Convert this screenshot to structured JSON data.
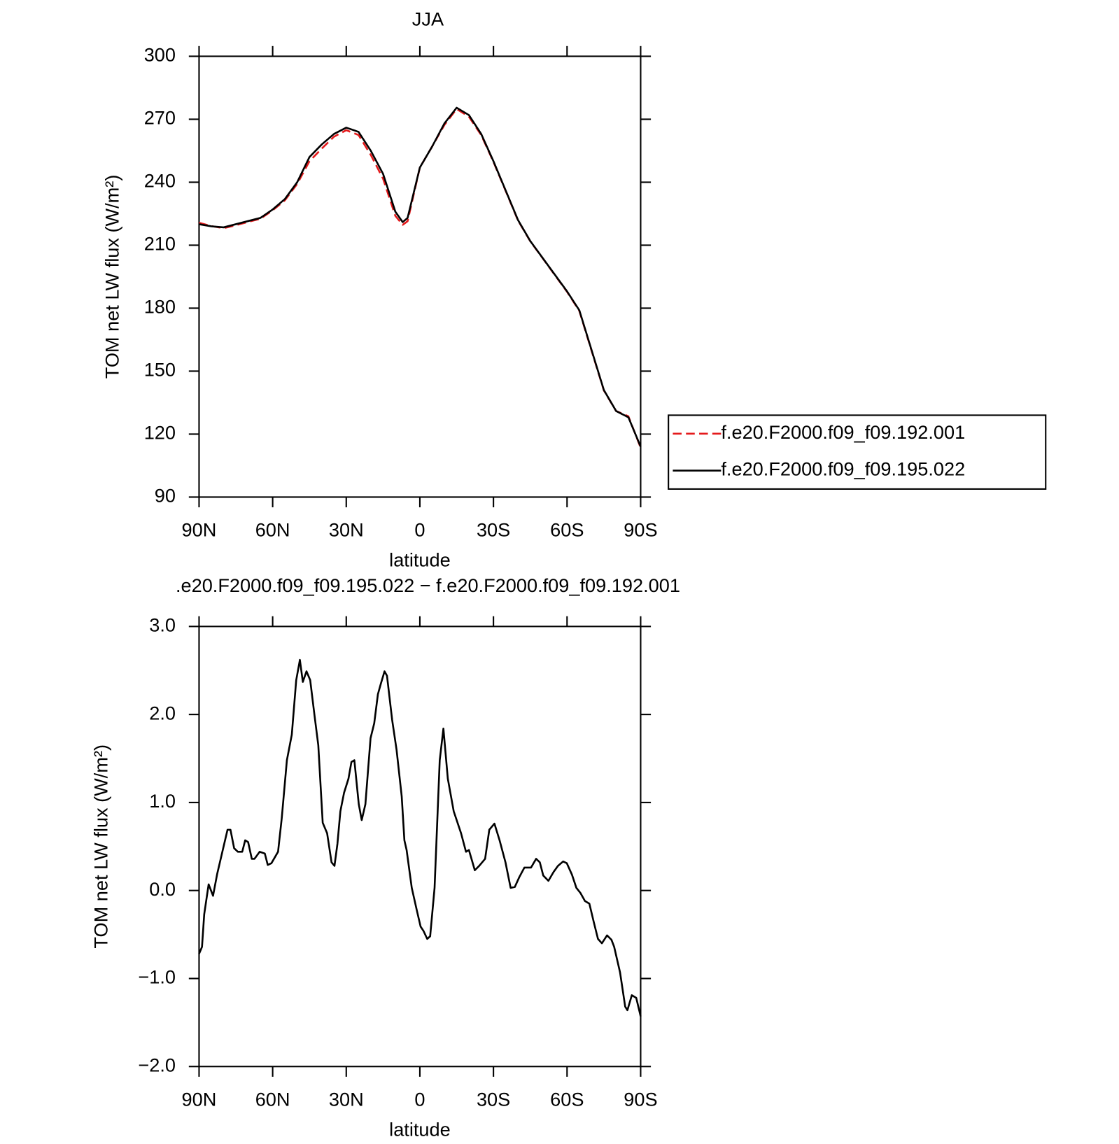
{
  "chart_data": [
    {
      "type": "line",
      "title": "JJA",
      "ylabel": "TOM net LW flux (W/m²)",
      "xlabel": "latitude",
      "x": [
        90,
        85,
        80,
        75,
        70,
        65,
        60,
        55,
        50,
        45,
        40,
        35,
        30,
        25,
        20,
        15,
        10,
        7,
        5,
        0,
        -5,
        -10,
        -15,
        -20,
        -25,
        -30,
        -35,
        -40,
        -45,
        -50,
        -55,
        -60,
        -65,
        -70,
        -75,
        -80,
        -85,
        -90
      ],
      "series": [
        {
          "name": "f.e20.F2000.f09_f09.192.001",
          "color": "#e41a1c",
          "line_style": "dashed",
          "values": [
            220.7,
            219.1,
            218.1,
            219.5,
            221.1,
            222.6,
            226.6,
            231.4,
            239.2,
            250.0,
            256.0,
            261.7,
            264.8,
            262.5,
            253.0,
            241.7,
            224.0,
            219.7,
            221.4,
            247.0,
            257.0,
            267.3,
            274.9,
            271.2,
            262.5,
            249.7,
            235.8,
            221.8,
            211.9,
            203.9,
            195.8,
            187.8,
            178.7,
            159.7,
            140.8,
            131.0,
            128.5,
            113.5
          ]
        },
        {
          "name": "f.e20.F2000.f09_f09.195.022",
          "color": "#000000",
          "line_style": "solid",
          "values": [
            220.0,
            219.0,
            218.5,
            220.0,
            221.5,
            223.0,
            227.0,
            232.0,
            240.0,
            252.0,
            258.0,
            263.0,
            266.0,
            264.0,
            255.0,
            244.0,
            226.0,
            221.0,
            223.0,
            247.0,
            257.0,
            268.0,
            275.5,
            272.0,
            263.0,
            250.0,
            236.0,
            222.0,
            212.0,
            204.0,
            196.0,
            188.0,
            179.0,
            160.0,
            141.0,
            131.0,
            128.0,
            114.0
          ]
        }
      ],
      "xlim": [
        90,
        -90
      ],
      "xticks": [
        {
          "value": 90,
          "label": "90N"
        },
        {
          "value": 60,
          "label": "60N"
        },
        {
          "value": 30,
          "label": "30N"
        },
        0,
        {
          "value": -30,
          "label": "30S"
        },
        {
          "value": -60,
          "label": "60S"
        },
        {
          "value": -90,
          "label": "90S"
        }
      ],
      "ylim": [
        90,
        300
      ],
      "yticks": [
        90,
        120,
        150,
        180,
        210,
        240,
        270,
        300
      ],
      "legend": "right"
    },
    {
      "type": "line",
      "title": ".e20.F2000.f09_f09.195.022 − f.e20.F2000.f09_f09.192.001",
      "ylabel": "TOM net LW flux (W/m²)",
      "xlabel": "latitude",
      "x": [
        90,
        88.8,
        87.9,
        86.1,
        84.3,
        82.6,
        80.5,
        78.4,
        77.2,
        75.7,
        74.2,
        72.4,
        71.2,
        70.0,
        68.5,
        67.4,
        65.3,
        63.2,
        62.0,
        60.5,
        57.8,
        56.3,
        54.2,
        52.2,
        50.4,
        48.9,
        47.7,
        46.2,
        44.7,
        42.9,
        41.4,
        39.6,
        37.8,
        36.0,
        34.8,
        33.6,
        32.4,
        30.9,
        29.1,
        27.9,
        26.7,
        24.9,
        23.7,
        22.2,
        20.1,
        18.6,
        17.1,
        15.9,
        14.4,
        13.4,
        11.3,
        9.5,
        7.4,
        6.3,
        5.4,
        3.3,
        1.2,
        -0.3,
        -1.5,
        -3.0,
        -4.2,
        -6.0,
        -8.1,
        -9.6,
        -11.4,
        -13.8,
        -16.8,
        -18.8,
        -20.0,
        -22.4,
        -24.2,
        -26.6,
        -28.3,
        -30.4,
        -32.5,
        -34.9,
        -37.0,
        -38.7,
        -40.5,
        -42.6,
        -45.3,
        -47.4,
        -48.9,
        -50.3,
        -52.4,
        -54.5,
        -56.3,
        -58.4,
        -59.9,
        -62.0,
        -63.8,
        -65.5,
        -67.3,
        -69.1,
        -70.9,
        -72.6,
        -74.2,
        -76.3,
        -78.1,
        -79.2,
        -81.6,
        -83.7,
        -84.6,
        -86.4,
        -88.2,
        -90
      ],
      "series": [
        {
          "name": "difference",
          "color": "#000000",
          "line_style": "solid",
          "values": [
            -0.72,
            -0.64,
            -0.27,
            0.07,
            -0.06,
            0.19,
            0.44,
            0.69,
            0.69,
            0.48,
            0.44,
            0.44,
            0.57,
            0.55,
            0.36,
            0.36,
            0.44,
            0.42,
            0.29,
            0.31,
            0.44,
            0.82,
            1.48,
            1.77,
            2.39,
            2.62,
            2.37,
            2.49,
            2.39,
            1.98,
            1.65,
            0.77,
            0.65,
            0.32,
            0.28,
            0.53,
            0.9,
            1.11,
            1.27,
            1.46,
            1.48,
            0.98,
            0.8,
            0.98,
            1.73,
            1.9,
            2.23,
            2.35,
            2.49,
            2.44,
            1.94,
            1.6,
            1.07,
            0.57,
            0.46,
            0.03,
            -0.23,
            -0.41,
            -0.46,
            -0.55,
            -0.52,
            0.03,
            1.48,
            1.84,
            1.27,
            0.9,
            0.65,
            0.44,
            0.46,
            0.23,
            0.28,
            0.36,
            0.69,
            0.76,
            0.57,
            0.32,
            0.03,
            0.04,
            0.15,
            0.26,
            0.26,
            0.36,
            0.32,
            0.17,
            0.11,
            0.21,
            0.28,
            0.33,
            0.31,
            0.18,
            0.03,
            -0.03,
            -0.12,
            -0.15,
            -0.36,
            -0.55,
            -0.6,
            -0.51,
            -0.56,
            -0.64,
            -0.93,
            -1.32,
            -1.36,
            -1.19,
            -1.22,
            -1.43
          ]
        }
      ],
      "xlim": [
        90,
        -90
      ],
      "xticks": [
        {
          "value": 90,
          "label": "90N"
        },
        {
          "value": 60,
          "label": "60N"
        },
        {
          "value": 30,
          "label": "30N"
        },
        0,
        {
          "value": -30,
          "label": "30S"
        },
        {
          "value": -60,
          "label": "60S"
        },
        {
          "value": -90,
          "label": "90S"
        }
      ],
      "ylim": [
        -2,
        3
      ],
      "yticks": [
        {
          "value": -2,
          "label": "−2.0"
        },
        {
          "value": -1,
          "label": "−1.0"
        },
        {
          "value": 0,
          "label": "0.0"
        },
        {
          "value": 1,
          "label": "1.0"
        },
        {
          "value": 2,
          "label": "2.0"
        },
        {
          "value": 3,
          "label": "3.0"
        }
      ]
    }
  ]
}
